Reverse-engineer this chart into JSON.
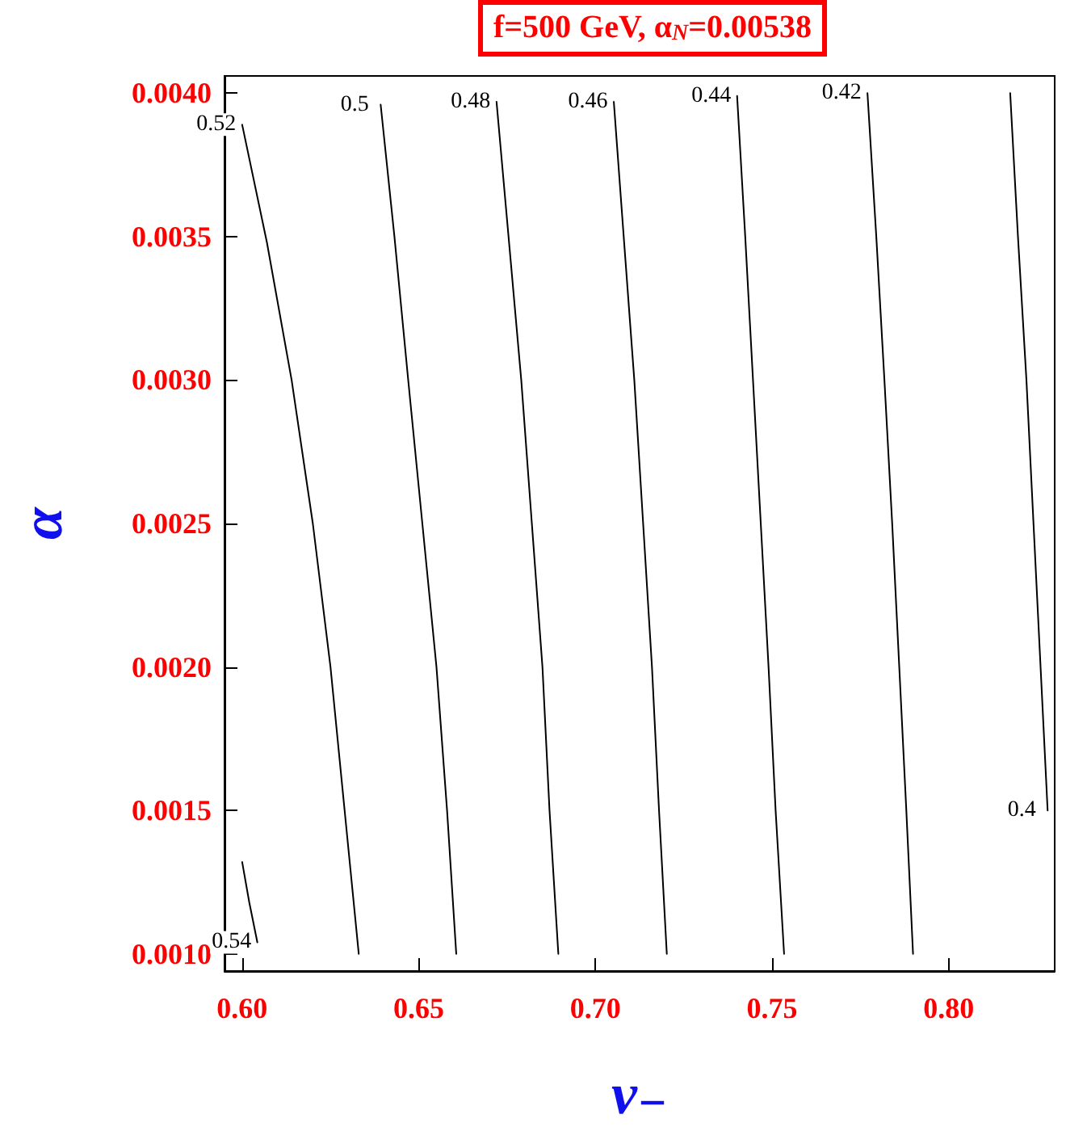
{
  "chart_data": {
    "type": "line",
    "title": "f=500 GeV, α$_{N}$=0.00538",
    "xlabel": "ν₋",
    "ylabel": "α",
    "series": [
      {
        "name": "0.52",
        "color": "#000000",
        "x": [
          0.633,
          0.629,
          0.625,
          0.62,
          0.614,
          0.607,
          0.6
        ],
        "values": [
          0.001,
          0.0015,
          0.002,
          0.0025,
          0.003,
          0.00348,
          0.00389
        ]
      },
      {
        "name": "0.5",
        "color": "#000000",
        "x": [
          0.6606,
          0.658,
          0.655,
          0.651,
          0.647,
          0.6431,
          0.6392
        ],
        "values": [
          0.001,
          0.0015,
          0.002,
          0.0025,
          0.003,
          0.0035,
          0.00396
        ]
      },
      {
        "name": "0.48",
        "color": "#000000",
        "x": [
          0.6895,
          0.687,
          0.685,
          0.682,
          0.679,
          0.6754,
          0.672
        ],
        "values": [
          0.001,
          0.0015,
          0.002,
          0.0025,
          0.003,
          0.0035,
          0.00397
        ]
      },
      {
        "name": "0.46",
        "color": "#000000",
        "x": [
          0.7202,
          0.718,
          0.716,
          0.7135,
          0.711,
          0.708,
          0.7052
        ],
        "values": [
          0.001,
          0.0015,
          0.002,
          0.0025,
          0.003,
          0.0035,
          0.00397
        ]
      },
      {
        "name": "0.44",
        "color": "#000000",
        "x": [
          0.7534,
          0.751,
          0.749,
          0.7468,
          0.7446,
          0.7424,
          0.7401
        ],
        "values": [
          0.001,
          0.0015,
          0.002,
          0.0025,
          0.003,
          0.0035,
          0.00399
        ]
      },
      {
        "name": "0.42",
        "color": "#000000",
        "x": [
          0.7899,
          0.788,
          0.786,
          0.784,
          0.7818,
          0.7795,
          0.777
        ],
        "values": [
          0.001,
          0.0015,
          0.002,
          0.0025,
          0.003,
          0.0035,
          0.004
        ]
      },
      {
        "name": "0.4",
        "color": "#000000",
        "x": [
          0.8174,
          0.8196,
          0.822,
          0.824,
          0.826,
          0.828
        ],
        "values": [
          0.004,
          0.0035,
          0.003,
          0.0025,
          0.002,
          0.0015
        ]
      },
      {
        "name": "0.54",
        "color": "#000000",
        "x": [
          0.6,
          0.602,
          0.6043
        ],
        "values": [
          0.00132,
          0.00118,
          0.00104
        ]
      }
    ],
    "xlim": [
      0.595,
      0.83
    ],
    "ylim": [
      0.00094,
      0.00406
    ],
    "xticks": [
      {
        "value": 0.6,
        "label": "0.60"
      },
      {
        "value": 0.65,
        "label": "0.65"
      },
      {
        "value": 0.7,
        "label": "0.70"
      },
      {
        "value": 0.75,
        "label": "0.75"
      },
      {
        "value": 0.8,
        "label": "0.80"
      }
    ],
    "yticks": [
      {
        "value": 0.001,
        "label": "0.0010"
      },
      {
        "value": 0.0015,
        "label": "0.0015"
      },
      {
        "value": 0.002,
        "label": "0.0020"
      },
      {
        "value": 0.0025,
        "label": "0.0025"
      },
      {
        "value": 0.003,
        "label": "0.0030"
      },
      {
        "value": 0.0035,
        "label": "0.0035"
      },
      {
        "value": 0.004,
        "label": "0.0040"
      }
    ],
    "grid": false,
    "legend": false,
    "line_style": "solid"
  }
}
